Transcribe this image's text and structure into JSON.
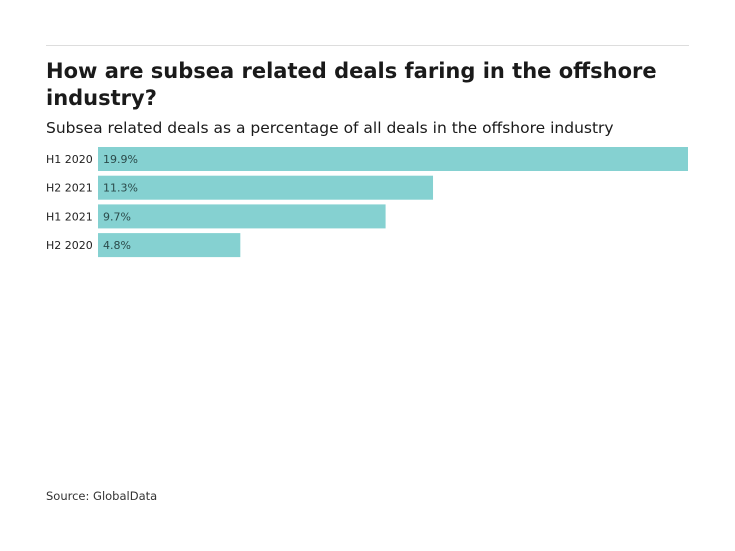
{
  "header": {
    "title": "How are subsea related deals faring in the offshore industry?",
    "subtitle": "Subsea related deals as a percentage of all deals in the offshore industry"
  },
  "footer": {
    "source": "Source: GlobalData"
  },
  "colors": {
    "bar": "#85d1d1",
    "text": "#222222",
    "rule": "#dddddd"
  },
  "chart_data": {
    "type": "bar",
    "orientation": "horizontal",
    "title": "How are subsea related deals faring in the offshore industry?",
    "subtitle": "Subsea related deals as a percentage of all deals in the offshore industry",
    "categories": [
      "H1 2020",
      "H2 2021",
      "H1 2021",
      "H2 2020"
    ],
    "values": [
      19.9,
      11.3,
      9.7,
      4.8
    ],
    "data_labels": [
      "19.9%",
      "11.3%",
      "9.7%",
      "4.8%"
    ],
    "unit": "%",
    "xlim": [
      0,
      19.9
    ],
    "grid": false,
    "legend": "none"
  }
}
